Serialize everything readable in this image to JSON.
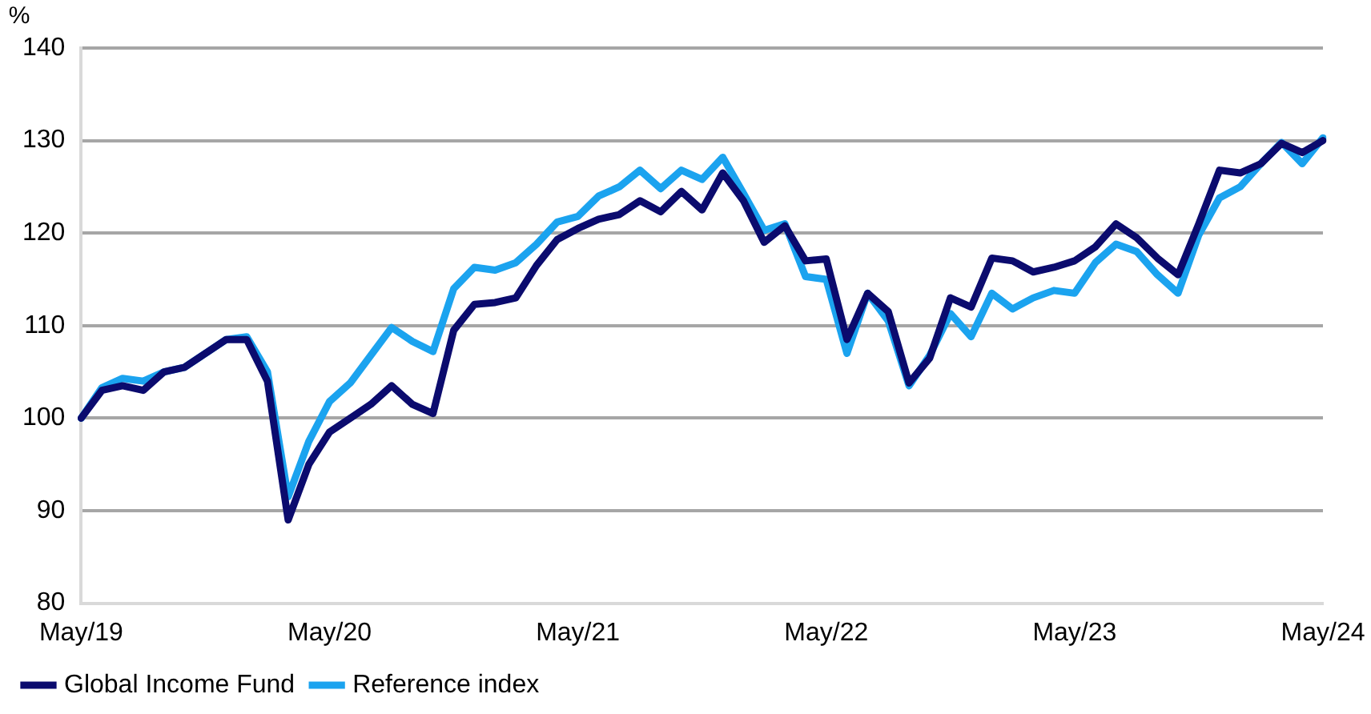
{
  "chart_data": {
    "type": "line",
    "ylabel": "%",
    "categories": [
      "May/19",
      null,
      null,
      null,
      null,
      null,
      null,
      null,
      null,
      null,
      null,
      null,
      "May/20",
      null,
      null,
      null,
      null,
      null,
      null,
      null,
      null,
      null,
      null,
      null,
      "May/21",
      null,
      null,
      null,
      null,
      null,
      null,
      null,
      null,
      null,
      null,
      null,
      "May/22",
      null,
      null,
      null,
      null,
      null,
      null,
      null,
      null,
      null,
      null,
      null,
      "May/23",
      null,
      null,
      null,
      null,
      null,
      null,
      null,
      null,
      null,
      null,
      null,
      "May/24"
    ],
    "series": [
      {
        "name": "Global Income Fund",
        "color": "#0b0b6e",
        "values": [
          100,
          103,
          103.5,
          103,
          105,
          105.5,
          107,
          108.5,
          108.5,
          104,
          89,
          95,
          98.5,
          100,
          101.5,
          103.5,
          101.5,
          100.5,
          109.5,
          112.3,
          112.5,
          113,
          116.5,
          119.3,
          120.5,
          121.5,
          122,
          123.5,
          122.3,
          124.5,
          122.5,
          126.5,
          123.5,
          119,
          120.8,
          117,
          117.2,
          108.5,
          113.5,
          111.5,
          103.8,
          106.5,
          113,
          112,
          117.3,
          117,
          115.8,
          116.3,
          117,
          118.5,
          121,
          119.5,
          117.3,
          115.5,
          121,
          126.8,
          126.5,
          127.5,
          129.7,
          128.7,
          130
        ]
      },
      {
        "name": "Reference index",
        "color": "#1ba3ef",
        "values": [
          100,
          103.3,
          104.3,
          104,
          105,
          105.5,
          107,
          108.5,
          108.8,
          105,
          91.5,
          97.5,
          101.8,
          103.8,
          106.8,
          109.8,
          108.3,
          107.2,
          114,
          116.3,
          116,
          116.8,
          118.8,
          121.2,
          121.8,
          124,
          125,
          126.8,
          124.8,
          126.8,
          125.8,
          128.2,
          124.3,
          120.3,
          121,
          115.3,
          115,
          107,
          113.5,
          110.5,
          103.5,
          106.8,
          111.3,
          108.8,
          113.5,
          111.8,
          113,
          113.8,
          113.5,
          116.8,
          118.8,
          118,
          115.5,
          113.5,
          119.8,
          123.8,
          125,
          127.5,
          129.8,
          127.5,
          130.3
        ]
      }
    ],
    "ylim": [
      80,
      140
    ],
    "yticks": [
      80,
      90,
      100,
      110,
      120,
      130,
      140
    ],
    "grid": "y",
    "legend": "bottom",
    "marker": "none",
    "line_style": "solid"
  }
}
